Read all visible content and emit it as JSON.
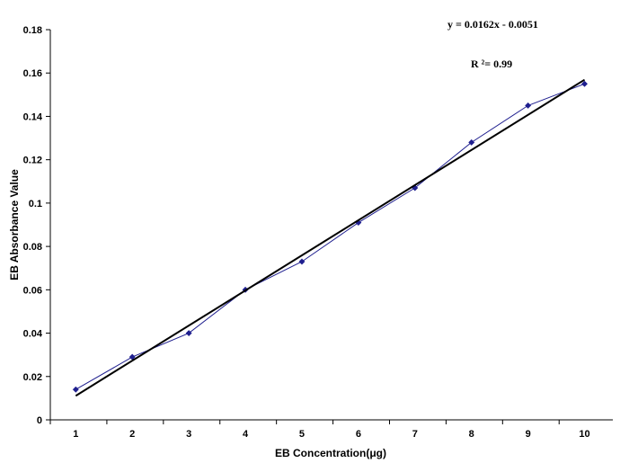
{
  "chart_data": {
    "type": "scatter",
    "xlabel": "EB Concentration(μg)",
    "ylabel": "EB Absorbance Value",
    "x": [
      1,
      2,
      3,
      4,
      5,
      6,
      7,
      8,
      9,
      10
    ],
    "series": [
      {
        "values": [
          0.014,
          0.029,
          0.04,
          0.06,
          0.073,
          0.091,
          0.107,
          0.128,
          0.145,
          0.155
        ],
        "color": "#1f1f8f",
        "marker": "diamond",
        "line": true
      }
    ],
    "trendline": {
      "slope": 0.0162,
      "intercept": -0.0051,
      "color": "#000000"
    },
    "annotations": {
      "equation": "y = 0.0162x -  0.0051",
      "r_squared": "R ²= 0.99"
    },
    "xlim": [
      0.55,
      10.5
    ],
    "ylim": [
      0,
      0.18
    ],
    "x_ticks": [
      "1",
      "2",
      "3",
      "4",
      "5",
      "6",
      "7",
      "8",
      "9",
      "10"
    ],
    "y_ticks": [
      "0",
      "0.02",
      "0.04",
      "0.06",
      "0.08",
      "0.1",
      "0.12",
      "0.14",
      "0.16",
      "0.18"
    ],
    "grid": false,
    "legend": "none"
  }
}
